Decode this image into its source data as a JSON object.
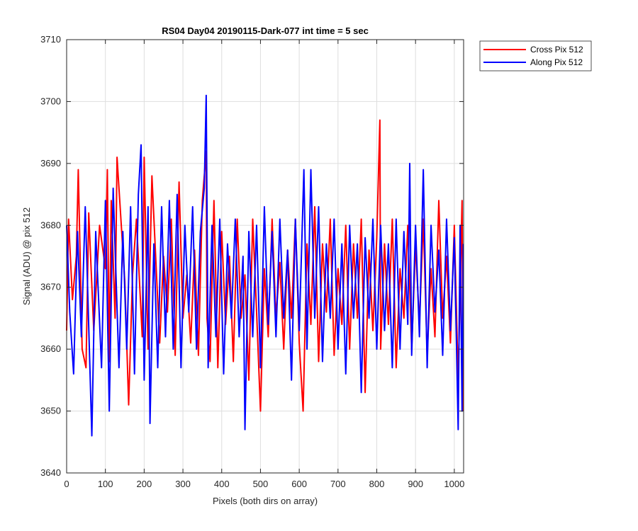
{
  "chart_data": {
    "type": "line",
    "title": "RS04 Day04 20190115-Dark-077 int time = 5 sec",
    "xlabel": "Pixels (both dirs on array)",
    "ylabel": "Signal (ADU) @ pix 512",
    "xlim": [
      0,
      1024
    ],
    "ylim": [
      3640,
      3710
    ],
    "xticks": [
      0,
      100,
      200,
      300,
      400,
      500,
      600,
      700,
      800,
      900,
      1000
    ],
    "yticks": [
      3640,
      3650,
      3660,
      3670,
      3680,
      3690,
      3700,
      3710
    ],
    "grid": true,
    "legend_position": "outside top-right",
    "series": [
      {
        "name": "Cross Pix 512",
        "color": "#ff0000",
        "x": [
          0,
          5,
          15,
          25,
          30,
          40,
          50,
          57,
          70,
          85,
          100,
          105,
          110,
          115,
          125,
          130,
          150,
          160,
          170,
          180,
          195,
          200,
          210,
          220,
          240,
          250,
          260,
          270,
          280,
          290,
          300,
          310,
          320,
          330,
          340,
          350,
          360,
          362,
          370,
          380,
          390,
          400,
          410,
          420,
          430,
          440,
          450,
          460,
          470,
          480,
          490,
          500,
          510,
          520,
          530,
          540,
          550,
          560,
          570,
          580,
          590,
          600,
          610,
          620,
          630,
          640,
          650,
          660,
          670,
          680,
          690,
          700,
          710,
          720,
          730,
          740,
          750,
          760,
          770,
          780,
          790,
          800,
          808,
          810,
          820,
          830,
          840,
          850,
          860,
          870,
          880,
          890,
          900,
          910,
          920,
          930,
          940,
          950,
          960,
          970,
          980,
          990,
          1000,
          1010,
          1020,
          1023
        ],
        "y": [
          3663,
          3681,
          3668,
          3675,
          3689,
          3660,
          3657,
          3682,
          3663,
          3680,
          3673,
          3689,
          3658,
          3684,
          3665,
          3691,
          3671,
          3651,
          3672,
          3681,
          3662,
          3691,
          3660,
          3688,
          3661,
          3675,
          3666,
          3681,
          3659,
          3687,
          3665,
          3672,
          3661,
          3676,
          3659,
          3684,
          3692,
          3665,
          3658,
          3684,
          3657,
          3679,
          3664,
          3675,
          3658,
          3681,
          3665,
          3672,
          3655,
          3681,
          3666,
          3650,
          3673,
          3662,
          3681,
          3665,
          3674,
          3660,
          3676,
          3665,
          3681,
          3661,
          3650,
          3677,
          3664,
          3683,
          3658,
          3677,
          3666,
          3681,
          3659,
          3673,
          3664,
          3680,
          3660,
          3677,
          3665,
          3681,
          3653,
          3676,
          3663,
          3678,
          3697,
          3660,
          3677,
          3664,
          3681,
          3657,
          3673,
          3665,
          3680,
          3660,
          3677,
          3664,
          3681,
          3659,
          3673,
          3662,
          3684,
          3665,
          3675,
          3661,
          3680,
          3655,
          3684,
          3650
        ]
      },
      {
        "name": "Along Pix 512",
        "color": "#0000ff",
        "x": [
          0,
          8,
          18,
          28,
          38,
          48,
          55,
          65,
          75,
          90,
          100,
          110,
          120,
          135,
          145,
          155,
          165,
          175,
          185,
          192,
          200,
          210,
          215,
          225,
          235,
          245,
          255,
          265,
          275,
          285,
          295,
          305,
          315,
          325,
          335,
          345,
          355,
          360,
          365,
          375,
          385,
          395,
          405,
          415,
          425,
          435,
          445,
          455,
          460,
          470,
          480,
          490,
          500,
          510,
          520,
          530,
          540,
          550,
          560,
          570,
          580,
          590,
          600,
          612,
          620,
          630,
          640,
          650,
          660,
          670,
          680,
          690,
          700,
          710,
          720,
          730,
          740,
          750,
          760,
          770,
          780,
          790,
          800,
          810,
          820,
          830,
          840,
          850,
          860,
          870,
          880,
          885,
          890,
          900,
          910,
          920,
          930,
          940,
          950,
          960,
          970,
          980,
          990,
          1000,
          1010,
          1015,
          1020,
          1023
        ],
        "y": [
          3680,
          3666,
          3656,
          3679,
          3662,
          3683,
          3668,
          3646,
          3679,
          3657,
          3684,
          3650,
          3686,
          3657,
          3679,
          3660,
          3683,
          3656,
          3685,
          3693,
          3655,
          3683,
          3648,
          3677,
          3657,
          3683,
          3662,
          3684,
          3660,
          3685,
          3657,
          3680,
          3666,
          3683,
          3660,
          3679,
          3686,
          3701,
          3657,
          3680,
          3662,
          3681,
          3656,
          3677,
          3665,
          3681,
          3662,
          3675,
          3647,
          3679,
          3662,
          3680,
          3657,
          3683,
          3664,
          3679,
          3662,
          3681,
          3665,
          3676,
          3655,
          3681,
          3663,
          3689,
          3660,
          3689,
          3665,
          3683,
          3658,
          3677,
          3665,
          3681,
          3660,
          3677,
          3656,
          3680,
          3665,
          3677,
          3653,
          3678,
          3665,
          3681,
          3660,
          3680,
          3663,
          3677,
          3657,
          3681,
          3660,
          3679,
          3664,
          3690,
          3659,
          3680,
          3662,
          3689,
          3657,
          3680,
          3666,
          3676,
          3659,
          3681,
          3663,
          3678,
          3647,
          3680,
          3650,
          3677
        ]
      }
    ]
  }
}
